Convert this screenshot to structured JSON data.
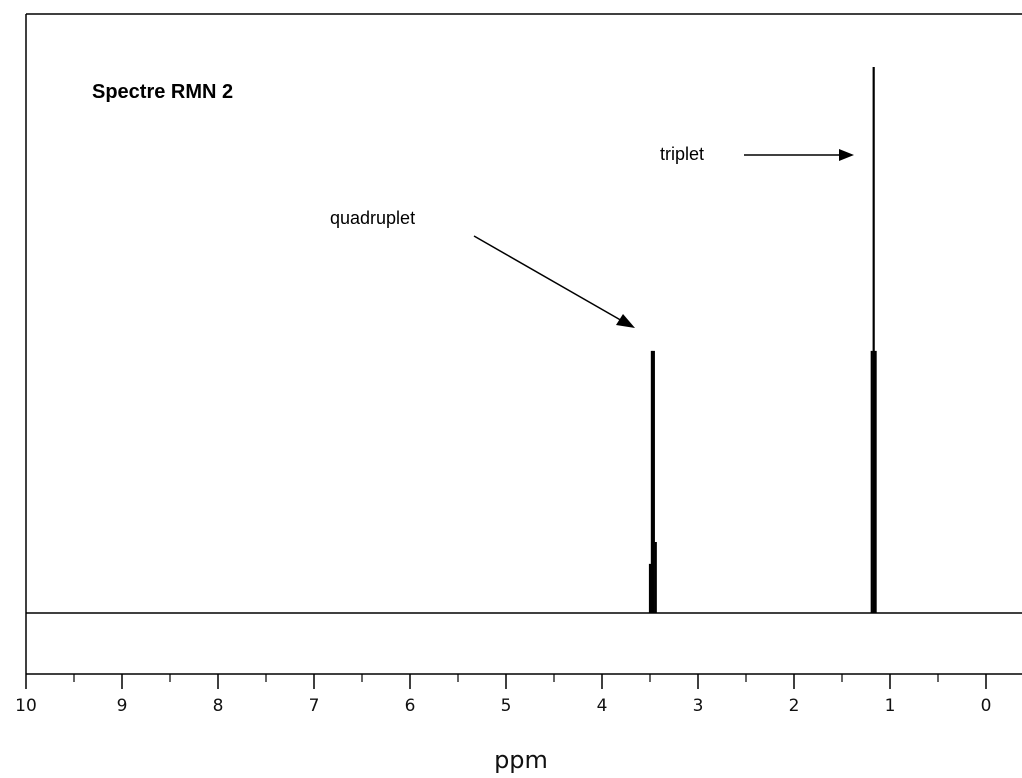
{
  "chart_data": {
    "type": "line",
    "title": "Spectre RMN 2",
    "xlabel": "ppm",
    "ylabel": "",
    "xlim": [
      10,
      -0.3
    ],
    "x_reversed": true,
    "ylim": [
      0,
      1
    ],
    "grid": false,
    "x_ticks": [
      10,
      9,
      8,
      7,
      6,
      5,
      4,
      3,
      2,
      1,
      0
    ],
    "x_tick_labels": [
      "10",
      "9",
      "8",
      "7",
      "6",
      "5",
      "4",
      "3",
      "2",
      "1",
      "0"
    ],
    "series": [
      {
        "peaks": [
          {
            "x": 3.5,
            "height": 0.09
          },
          {
            "x": 3.48,
            "height": 0.48
          },
          {
            "x": 3.46,
            "height": 0.48
          },
          {
            "x": 3.44,
            "height": 0.13
          },
          {
            "x": 1.19,
            "height": 0.48
          },
          {
            "x": 1.17,
            "height": 1.0
          },
          {
            "x": 1.15,
            "height": 0.48
          }
        ]
      }
    ],
    "annotations": [
      {
        "text": "quadruplet",
        "target_x": 3.5
      },
      {
        "text": "triplet",
        "target_x": 1.35
      }
    ],
    "colors": {
      "line": "#000000",
      "frame": "#000000",
      "background": "#ffffff"
    }
  }
}
